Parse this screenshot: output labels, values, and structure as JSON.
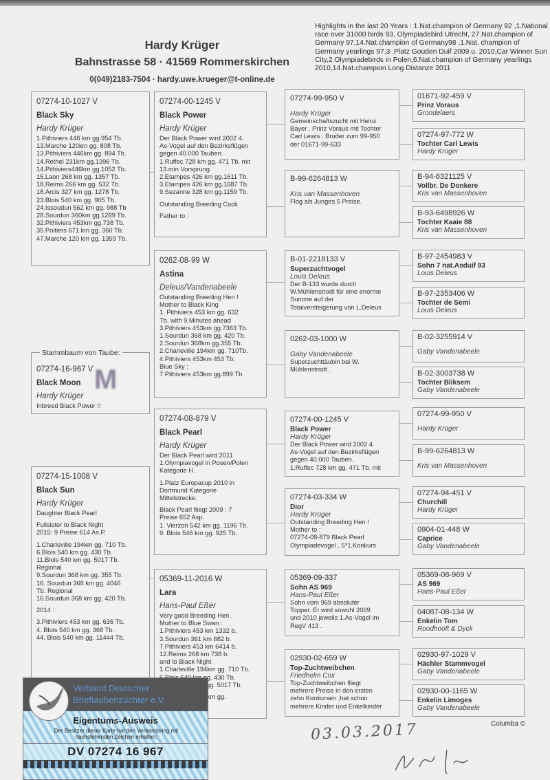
{
  "header": {
    "name": "Hardy Krüger",
    "address": "Bahnstrasse 58  ·  41569 Rommerskirchen",
    "contact": "0(049)2183-7504  ·  hardy.uwe.krueger@t-online.de"
  },
  "highlights": "Highlights in the last 20 Years : 1.Nat.champion of Germany 92 ,1.National race over 31000 birds 93, Olympiadebird Utrecht, 27.Nat.champion of Germany 97,14.Nat.champion of Germany98 ,1.Nat. champion of Germany yearlings 97,3 .Platz Gouden Duif 2009 u. 2010,Car Winner Sun City,2 Olympiadebirds in Polen,6.Nat.champion of Germany yearlings 2010,14.Nat.champion Long Distanze 2011",
  "stammbaum_label": "Stammbaum von Taube:",
  "subject_mark": "M",
  "birds": [
    {
      "id": "sire",
      "ring": "07274-10-1027 V",
      "name": "Black Sky",
      "owner": "Hardy Krüger",
      "notes": [
        "1.Pithiviers 446 km gg.954 Tb.",
        "13.Marche 120km gg. 808 Tb.",
        "13.Pithiviers 446km gg. 894 Tb.",
        "14.Rethel 231km gg.1396 Tb.",
        "14.Pithiviers446km gg.1052 Tb.",
        "15.Laon 268 km gg. 1357 Tb.",
        " 18.Reims 266 km gg. 532 Tb.",
        "18.Arcis 327 km gg. 1278 Tb.",
        "23.Blois 540 km gg. 905 Tb.",
        "24.Issoudun 562 km gg. 988 Tb",
        "28.Sourdun 360km gg.1289 Tb.",
        "32.Pithiviers 453km gg.738 Tb.",
        "35.Poitiers 671 km gg. 360 Tb.",
        "47.Marche 120 km gg. 1359 Tb."
      ]
    },
    {
      "id": "subject",
      "ring": "07274-16-967 V",
      "name": "Black Moon",
      "owner": "Hardy Krüger",
      "notes": [
        "Inbreed Black Power !!"
      ]
    },
    {
      "id": "dam",
      "ring": "07274-15-1008 V",
      "name": "Black Sun",
      "owner": "Hardy Krüger",
      "notes": [
        "Daughter Black Pearl",
        "",
        "Fullsister to Black Night",
        "2015:  9 Preise 614 As.P.",
        "",
        "1.Charleville 194km gg. 710 Tb.",
        "6.Blois 540  km gg. 430 Tb.",
        "11.Blois 540 km gg. 5017 Tb.",
        "Regional",
        "9.Sourdun 368 km gg. 355 Tb.",
        "16. Sourdun 368 km gg. 4046",
        "Tb. Regional",
        "16.Sourdun 368 km gg. 420 Tb.",
        "",
        "2014 :",
        "",
        "3.Pithiviers 453 km gg. 635 Tb.",
        "4. Blois 540 km gg. 368 Tb.",
        "44. Blois 540 km gg. 11444 Tb."
      ]
    },
    {
      "id": "ss",
      "ring": "07274-00-1245 V",
      "name": "Black Power",
      "owner": "Hardy Krüger",
      "notes": [
        "Der Black Power wird 2002 4.",
        "As-Vogel auf den Bezirksflügen",
        "gegen 40.000 Tauben.",
        "1.Ruffec 728 km gg. 471 Tb. mit",
        "13.min Vorsprung.",
        "2.Etampes 426 km gg.1611 Tb.",
        "3.Etampes 426 km gg.1687 Tb.",
        "9.Sezanne 328 km gg.1159 Tb.",
        "",
        "Outstanding Breeding Cock",
        "",
        "Father to :"
      ]
    },
    {
      "id": "sd",
      "ring": "0262-08-99 W",
      "name": "Astina",
      "owner": "Deleus/Vandenabeele",
      "notes": [
        "Outstanding Breeding Hen !",
        "Mother to Black King",
        "1. Pithiviers  453 km gg. 632",
        "Tb. with 9.Minutes ahead",
        "3.Pithiviers 453km gg.7363 Tb.",
        "1.Sourdun 368 km gg. 420 Tb.",
        "2.Sourdun 368km gg.355 Tb.",
        "2.Charleville 194km gg. 710Tb.",
        "4.Pithiviers 453km 453 Tb.",
        "Blue Sky :",
        "7.Pithiviers 453km gg.899 Tb."
      ]
    },
    {
      "id": "ds",
      "ring": "07274-08-879 V",
      "name": "Black Pearl",
      "owner": "Hardy Krüger",
      "notes": [
        "Der Black Pearl wird 2011",
        "1.Olympiavogel in Posen/Polen",
        "Kategorie H.",
        "",
        "1.Platz Europacup 2010 in",
        "Dortmund Kategorie",
        "Mittelstrecke.",
        "",
        "Black Pearl fliegt 2009 : 7",
        "Preise 652 Asp.",
        "1. Vierzon 542 km gg. 1196 Tb.",
        "9. Blois 546 km gg. 925 Tb."
      ]
    },
    {
      "id": "dd",
      "ring": "05369-11-2016 W",
      "name": "Lara",
      "owner": "Hans-Paul Eßer",
      "notes": [
        "Very good Breeding Hen .",
        "Mother to Blue Swan :",
        "1.Pithiviers 453 km 1332 b.",
        "3.Sourdun 361 km 682 b.",
        "7.Pithiviers 453 km 6414 b.",
        "12.Reims 268 km 738 b.",
        "and to Black Night",
        "1.Charleville 194km gg. 710 Tb.",
        "6.Blois 540 km gg. 430 Tb.",
        "11.Blois 540 km gg. 5017 Tb.",
        "",
        "16.Sourdun 368 km gg."
      ]
    },
    {
      "id": "sss",
      "ring": "07274-99-950 V",
      "name": "",
      "owner": "Hardy Krüger",
      "notes": [
        "Gemeinschaftszucht mit Heinz",
        "Bayer . Prinz Voraus mit Tochter",
        "Carl Lewis . Bruder zum 99-950",
        "der 01671-99-633"
      ]
    },
    {
      "id": "ssd",
      "ring": "B-99-6264813 W",
      "name": "",
      "owner": "Kris van Massenhoven",
      "notes": [
        "Flog als Junges 5 Preise."
      ]
    },
    {
      "id": "sds",
      "ring": "B-01-2218133 V",
      "name": "Superzuchtvogel",
      "owner": "Louis Deleus",
      "notes": [
        "Der B-133 wurde durch",
        "W.Mühlenstrodt für eine enorme",
        "Summe auf der",
        "Totalversteigerung von L.Deleus"
      ]
    },
    {
      "id": "sdd",
      "ring": "0262-03-1000 W",
      "name": "",
      "owner": "Gaby Vandenabeele",
      "notes": [
        "Superzuchttäubin bei W.",
        "Mühlenstrodt ."
      ]
    },
    {
      "id": "dss",
      "ring": "07274-00-1245 V",
      "name": "Black Power",
      "owner": "Hardy Krüger",
      "notes": [
        "Der Black Power wird 2002 4.",
        "As-Vogel auf den Bezirksflügen",
        "gegen 40.000 Tauben.",
        "1.Ruffec 728 km gg. 471 Tb. mit"
      ]
    },
    {
      "id": "dsd",
      "ring": "07274-03-334 W",
      "name": "Dior",
      "owner": "Hardy Krüger",
      "notes": [
        "Outstanding Breeding Hen !",
        "Mother to :",
        "07274-08-879 Black Pearl",
        "Olympiadevogel , 5*1.Konkurs"
      ]
    },
    {
      "id": "dds",
      "ring": "05369-09-337",
      "name": "Sohn AS 969",
      "owner": "Hans-Paul Eßer",
      "notes": [
        "Sohn vom 969 absoluter",
        "Topper. Er wird sowohl 2009",
        "und 2010 jeweils 1.As-Vogel im",
        "RegV 413 ."
      ]
    },
    {
      "id": "ddd",
      "ring": "02930-02-659 W",
      "name": "Top-Zuchtweibchen",
      "owner": "Friedhelm Cox",
      "notes": [
        "Top-Zuchtweibchen fliegt",
        "mehrere Preise in den ersten",
        "zehn Konkursen ,hat schon",
        "mehrere Kinder und Enkelkinder"
      ]
    },
    {
      "id": "g1",
      "ring": "01671-92-459 V",
      "name": "Prinz Voraus",
      "owner": "Grondelaers",
      "notes": []
    },
    {
      "id": "g2",
      "ring": "07274-97-772 W",
      "name": "Tochter Carl Lewis",
      "owner": "Hardy Krüger",
      "notes": []
    },
    {
      "id": "g3",
      "ring": "B-94-6321125 V",
      "name": "Vollbr.  De Donkere",
      "owner": "Kris van Massenhoven",
      "notes": []
    },
    {
      "id": "g4",
      "ring": "B-93-6498926 W",
      "name": "Tochter Kaaie 88",
      "owner": "Kris van Massenhoven",
      "notes": []
    },
    {
      "id": "g5",
      "ring": "B-97-2454983 V",
      "name": "Sohn 7 nat.Asduif 93",
      "owner": "Louis Deleus",
      "notes": []
    },
    {
      "id": "g6",
      "ring": "B-97-2353406 W",
      "name": "Tochter de Semi",
      "owner": "Louis Deleus",
      "notes": []
    },
    {
      "id": "g7",
      "ring": "B-02-3255914 V",
      "name": "",
      "owner": "Gaby Vandenabeele",
      "notes": []
    },
    {
      "id": "g8",
      "ring": "B-02-3003738 W",
      "name": "Tochter Bliksem",
      "owner": "Gaby Vandenabeele",
      "notes": []
    },
    {
      "id": "g9",
      "ring": "07274-99-950 V",
      "name": "",
      "owner": "Hardy Krüger",
      "notes": []
    },
    {
      "id": "g10",
      "ring": "B-99-6264813 W",
      "name": "",
      "owner": "Kris van Massenhoven",
      "notes": []
    },
    {
      "id": "g11",
      "ring": "07274-94-451 V",
      "name": "Churchill",
      "owner": "Hardy Krüger",
      "notes": []
    },
    {
      "id": "g12",
      "ring": "0904-01-448 W",
      "name": "Caprice",
      "owner": "Gaby Vandenabeele",
      "notes": []
    },
    {
      "id": "g13",
      "ring": "05369-08-969 V",
      "name": "AS 969",
      "owner": "Hans-Paul Eßer",
      "notes": []
    },
    {
      "id": "g14",
      "ring": "04087-08-134 W",
      "name": "Enkelin Tom",
      "owner": "Roodhooft & Dyck",
      "notes": []
    },
    {
      "id": "g15",
      "ring": "02930-97-1029 V",
      "name": "Hächler Stammvogel",
      "owner": "Gaby Vandenabeele",
      "notes": []
    },
    {
      "id": "g16",
      "ring": "02930-00-1165 W",
      "name": "Enkelin Limoges",
      "owner": "Gaby Vandenabeele",
      "notes": []
    }
  ],
  "card": {
    "org_line1": "Verband Deutscher",
    "org_line2": "Brieftaubenzüchter e.V.",
    "title": "Eigentums-Ausweis",
    "subtitle": "Der Besitzer dieser Karte hat den Verbandsring mit nachstehenden Zeichen erhalten:",
    "ring_number": "DV 07274 16   967",
    "colors": {
      "header": "#555558",
      "text_blue": "#5f93c8",
      "pattern": "#9ccbe5"
    }
  },
  "handwritten_date": "03.03.2017",
  "footer": "Columba ©"
}
